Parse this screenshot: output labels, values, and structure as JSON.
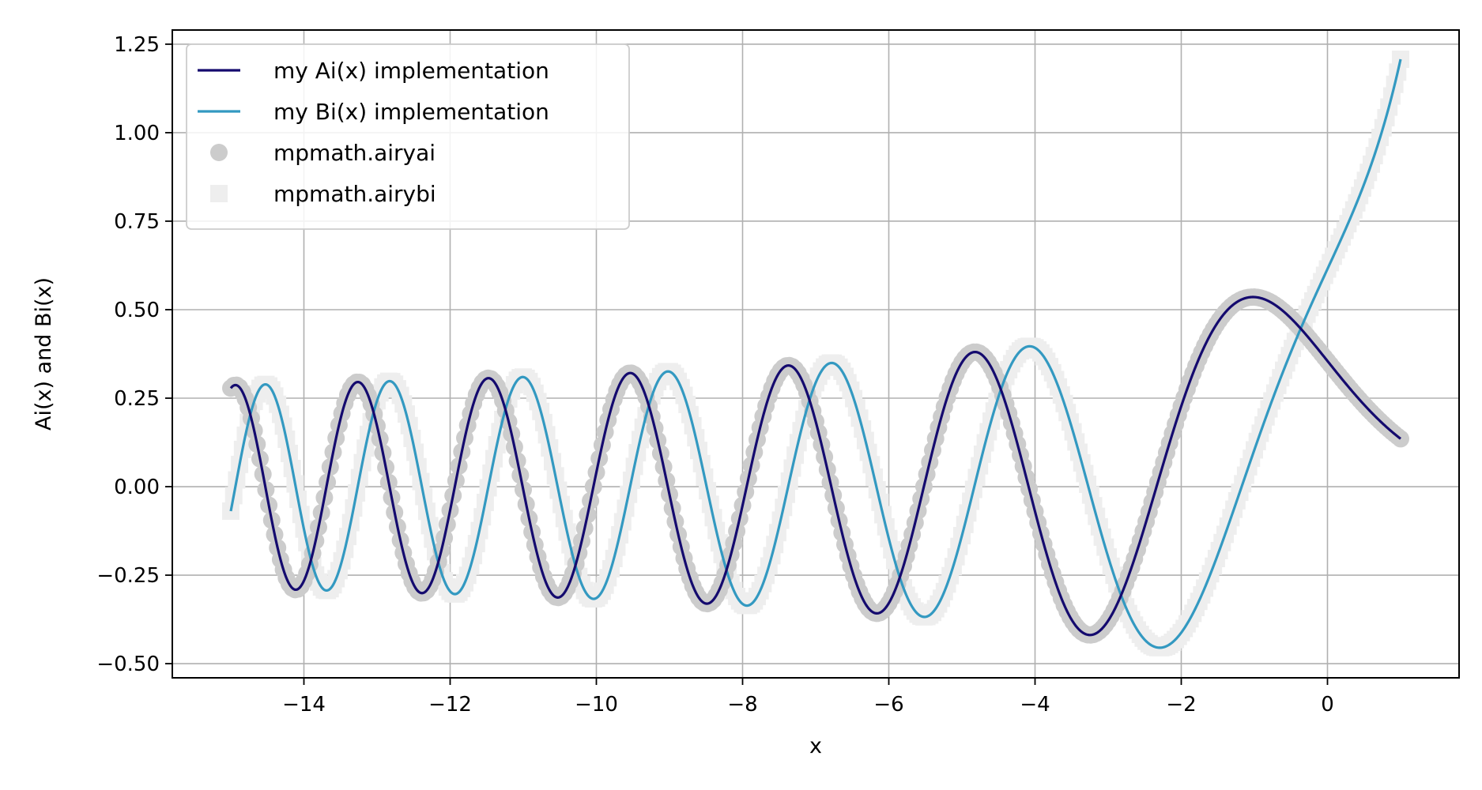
{
  "chart_data": {
    "type": "line",
    "title": "",
    "xlabel": "x",
    "ylabel": "Ai(x) and Bi(x)",
    "xlim": [
      -15.8,
      1.8
    ],
    "ylim": [
      -0.54,
      1.29
    ],
    "x_ticks": [
      -14,
      -12,
      -10,
      -8,
      -6,
      -4,
      -2,
      0
    ],
    "x_tick_labels": [
      "−14",
      "−12",
      "−10",
      "−8",
      "−6",
      "−4",
      "−2",
      "0"
    ],
    "y_ticks": [
      -0.5,
      -0.25,
      0.0,
      0.25,
      0.5,
      0.75,
      1.0,
      1.25
    ],
    "y_tick_labels": [
      "−0.50",
      "−0.25",
      "0.00",
      "0.25",
      "0.50",
      "0.75",
      "1.00",
      "1.25"
    ],
    "grid": true,
    "legend_position": "top-left",
    "x_range": [
      -15,
      1
    ],
    "series": [
      {
        "name": "my Ai(x) implementation",
        "function": "Ai",
        "color": "#140a6e",
        "style": "line"
      },
      {
        "name": "my Bi(x) implementation",
        "function": "Bi",
        "color": "#3399c1",
        "style": "line"
      },
      {
        "name": "mpmath.airyai",
        "function": "Ai",
        "color": "#cccccc",
        "style": "circle-markers"
      },
      {
        "name": "mpmath.airybi",
        "function": "Bi",
        "color": "#eeeeee",
        "style": "square-markers"
      }
    ],
    "sample_points": {
      "Ai": [
        [
          -15,
          0.276
        ],
        [
          -14.1,
          -0.289
        ],
        [
          -13.25,
          0.296
        ],
        [
          -12.4,
          -0.298
        ],
        [
          -11.5,
          0.305
        ],
        [
          -10.55,
          -0.312
        ],
        [
          -9.55,
          0.32
        ],
        [
          -8.5,
          -0.334
        ],
        [
          -7.4,
          0.341
        ],
        [
          -6.2,
          -0.354
        ],
        [
          -4.82,
          0.38
        ],
        [
          -3.25,
          -0.42
        ],
        [
          -1.02,
          0.536
        ],
        [
          0,
          0.355
        ],
        [
          1,
          0.135
        ]
      ],
      "Bi": [
        [
          -15,
          -0.071
        ],
        [
          -14.5,
          0.285
        ],
        [
          -13.7,
          -0.292
        ],
        [
          -12.85,
          0.298
        ],
        [
          -11.95,
          -0.303
        ],
        [
          -11.05,
          0.31
        ],
        [
          -10.05,
          -0.316
        ],
        [
          -9.05,
          0.324
        ],
        [
          -7.95,
          -0.335
        ],
        [
          -6.8,
          0.35
        ],
        [
          -5.5,
          -0.367
        ],
        [
          -4.1,
          0.393
        ],
        [
          -2.3,
          -0.454
        ],
        [
          0,
          0.615
        ],
        [
          1,
          1.207
        ]
      ]
    }
  }
}
